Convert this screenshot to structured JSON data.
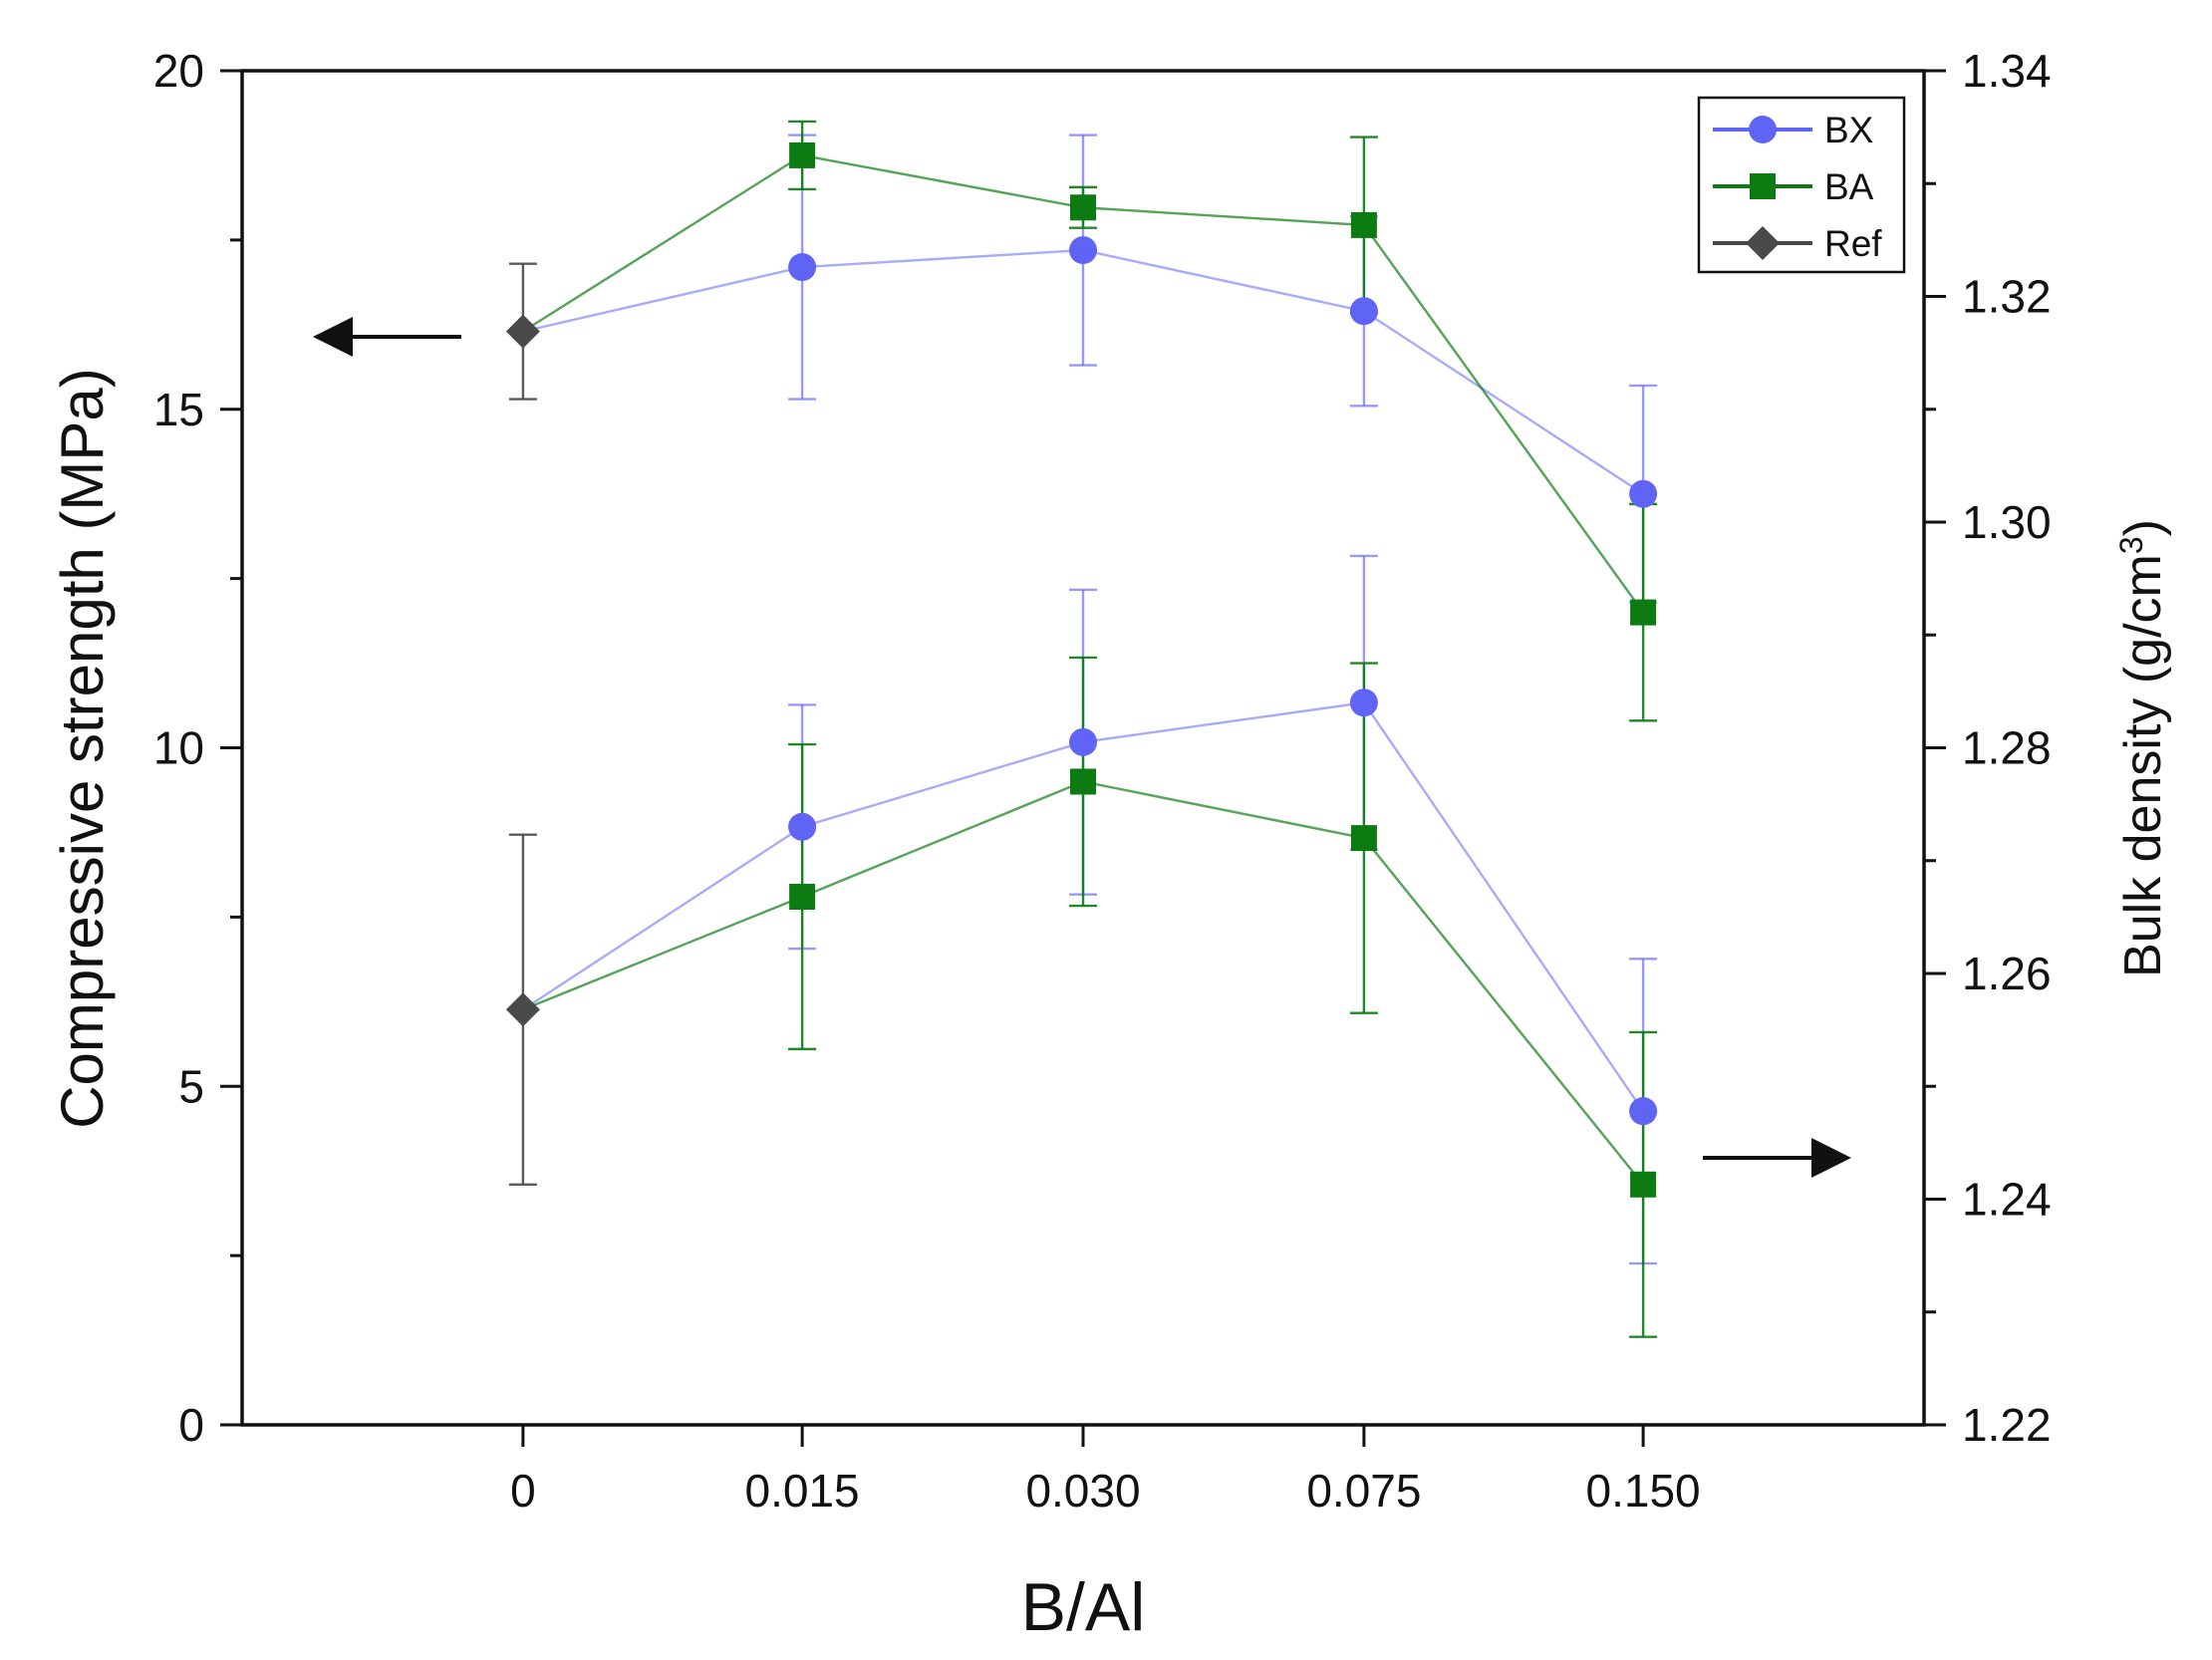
{
  "chart_data": {
    "type": "line",
    "categories": [
      "0",
      "0.015",
      "0.030",
      "0.075",
      "0.150"
    ],
    "xlabel": "B/Al",
    "ylabel_left": "Compressive strength (MPa)",
    "ylabel_right_main": "Bulk density (g/cm",
    "ylabel_right_sup": "3",
    "ylabel_right_close": ")",
    "ylim_left": [
      0,
      20
    ],
    "ylim_right": [
      1.22,
      1.34
    ],
    "left_ticks": [
      "0",
      "5",
      "10",
      "15",
      "20"
    ],
    "right_ticks": [
      "1.22",
      "1.24",
      "1.26",
      "1.28",
      "1.30",
      "1.32",
      "1.34"
    ],
    "grid": false,
    "legend_position": "top-right",
    "colors": {
      "BX": "#6064f5",
      "BA": "#0c7c12",
      "Ref": "#4a4a4a",
      "axis": "#111111"
    },
    "legend": [
      {
        "name": "BX",
        "marker": "circle"
      },
      {
        "name": "BA",
        "marker": "square"
      },
      {
        "name": "Ref",
        "marker": "diamond"
      }
    ],
    "series": [
      {
        "name": "BX",
        "group": "compressive_strength",
        "axis": "left",
        "marker": "circle",
        "values": [
          null,
          17.1,
          17.35,
          16.45,
          13.75
        ],
        "errors": [
          null,
          1.95,
          1.7,
          1.4,
          1.6
        ]
      },
      {
        "name": "BA",
        "group": "compressive_strength",
        "axis": "left",
        "marker": "square",
        "values": [
          null,
          18.75,
          17.98,
          17.72,
          12.0
        ],
        "errors": [
          null,
          0.5,
          0.3,
          1.3,
          1.6
        ]
      },
      {
        "name": "Ref",
        "group": "compressive_strength",
        "axis": "left",
        "marker": "diamond",
        "values": [
          16.15,
          null,
          null,
          null,
          null
        ],
        "errors": [
          1.0,
          null,
          null,
          null,
          null
        ]
      },
      {
        "name": "BX",
        "group": "bulk_density",
        "axis": "right",
        "marker": "circle",
        "values": [
          null,
          1.273,
          1.2805,
          1.284,
          1.2478
        ],
        "errors": [
          null,
          0.0108,
          0.0135,
          0.013,
          0.0135
        ]
      },
      {
        "name": "BA",
        "group": "bulk_density",
        "axis": "right",
        "marker": "square",
        "values": [
          null,
          1.2668,
          1.277,
          1.272,
          1.2413
        ],
        "errors": [
          null,
          0.0135,
          0.011,
          0.0155,
          0.0135
        ]
      },
      {
        "name": "Ref",
        "group": "bulk_density",
        "axis": "right",
        "marker": "diamond",
        "values": [
          1.2568,
          null,
          null,
          null,
          null
        ],
        "errors": [
          0.0155,
          null,
          null,
          null,
          null
        ]
      }
    ],
    "connect_to_ref": true,
    "annotations": [
      {
        "type": "arrow",
        "direction": "left",
        "meaning": "left y-axis (compressive strength)"
      },
      {
        "type": "arrow",
        "direction": "right",
        "meaning": "right y-axis (bulk density)"
      }
    ]
  }
}
